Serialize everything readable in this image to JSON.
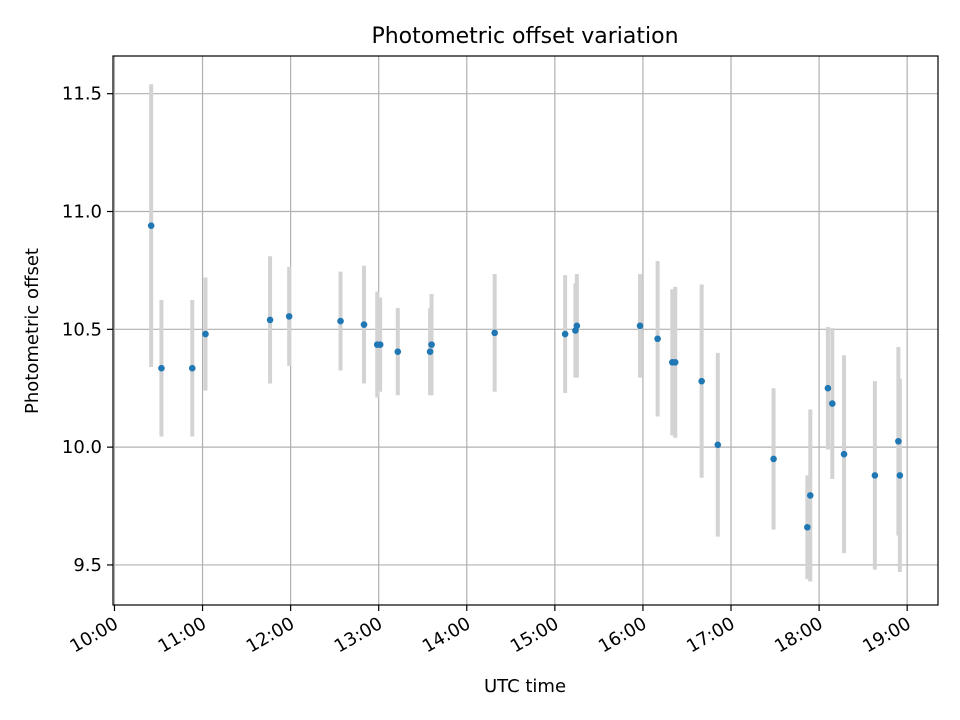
{
  "chart_data": {
    "type": "scatter",
    "title": "Photometric offset variation",
    "xlabel": "UTC time",
    "ylabel": "Photometric offset",
    "xlim": [
      "09:59",
      "19:21"
    ],
    "ylim": [
      9.33,
      11.66
    ],
    "x_ticks": [
      "10:00",
      "11:00",
      "12:00",
      "13:00",
      "14:00",
      "15:00",
      "16:00",
      "17:00",
      "18:00",
      "19:00"
    ],
    "y_ticks": [
      9.5,
      10.0,
      10.5,
      11.0,
      11.5
    ],
    "grid": true,
    "marker_color": "#1f77b4",
    "errorbar_color": "#d3d3d3",
    "series": [
      {
        "points": [
          {
            "x": "10:25",
            "y": 10.94,
            "err": 0.6
          },
          {
            "x": "10:32",
            "y": 10.335,
            "err": 0.29
          },
          {
            "x": "10:53",
            "y": 10.335,
            "err": 0.29
          },
          {
            "x": "11:02",
            "y": 10.48,
            "err": 0.24
          },
          {
            "x": "11:46",
            "y": 10.54,
            "err": 0.27
          },
          {
            "x": "11:59",
            "y": 10.555,
            "err": 0.21
          },
          {
            "x": "12:34",
            "y": 10.535,
            "err": 0.21
          },
          {
            "x": "12:50",
            "y": 10.52,
            "err": 0.25
          },
          {
            "x": "12:59",
            "y": 10.435,
            "err": 0.225
          },
          {
            "x": "13:01",
            "y": 10.435,
            "err": 0.2
          },
          {
            "x": "13:13",
            "y": 10.405,
            "err": 0.185
          },
          {
            "x": "13:35",
            "y": 10.405,
            "err": 0.185
          },
          {
            "x": "13:36",
            "y": 10.435,
            "err": 0.215
          },
          {
            "x": "14:19",
            "y": 10.485,
            "err": 0.25
          },
          {
            "x": "15:07",
            "y": 10.48,
            "err": 0.25
          },
          {
            "x": "15:14",
            "y": 10.495,
            "err": 0.2
          },
          {
            "x": "15:15",
            "y": 10.515,
            "err": 0.22
          },
          {
            "x": "15:58",
            "y": 10.515,
            "err": 0.22
          },
          {
            "x": "16:10",
            "y": 10.46,
            "err": 0.33
          },
          {
            "x": "16:20",
            "y": 10.36,
            "err": 0.31
          },
          {
            "x": "16:22",
            "y": 10.36,
            "err": 0.32
          },
          {
            "x": "16:40",
            "y": 10.28,
            "err": 0.41
          },
          {
            "x": "16:51",
            "y": 10.01,
            "err": 0.39
          },
          {
            "x": "17:29",
            "y": 9.95,
            "err": 0.3
          },
          {
            "x": "17:52",
            "y": 9.66,
            "err": 0.22
          },
          {
            "x": "17:54",
            "y": 9.795,
            "err": 0.365
          },
          {
            "x": "18:06",
            "y": 10.25,
            "err": 0.26
          },
          {
            "x": "18:09",
            "y": 10.185,
            "err": 0.32
          },
          {
            "x": "18:17",
            "y": 9.97,
            "err": 0.42
          },
          {
            "x": "18:38",
            "y": 9.88,
            "err": 0.4
          },
          {
            "x": "18:54",
            "y": 10.025,
            "err": 0.4
          },
          {
            "x": "18:55",
            "y": 9.88,
            "err": 0.41
          }
        ]
      }
    ]
  }
}
